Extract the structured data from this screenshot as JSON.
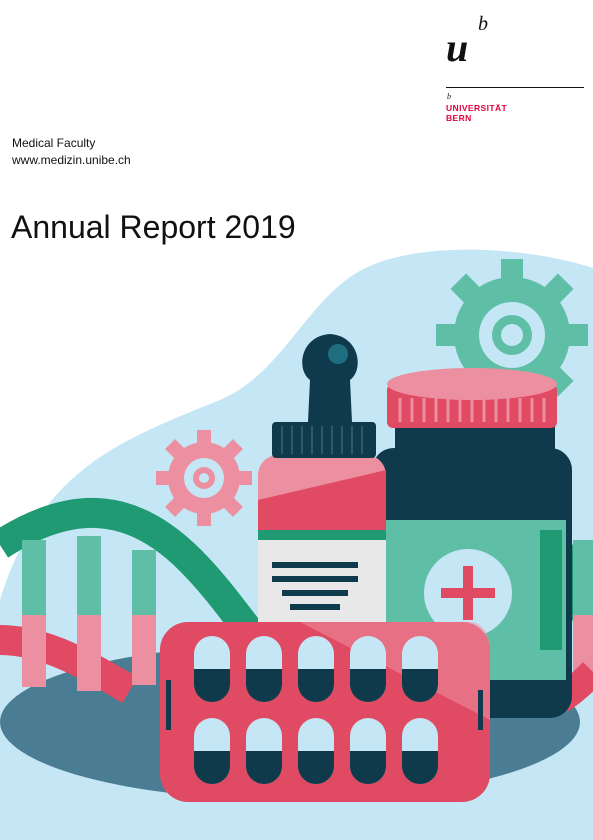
{
  "logo": {
    "mark_u": "u",
    "mark_b": "b",
    "small_b": "b",
    "line1": "UNIVERSITÄT",
    "line2": "BERN",
    "color": "#e2003b"
  },
  "faculty": {
    "name": "Medical Faculty",
    "url": "www.medizin.unibe.ch"
  },
  "title": "Annual Report 2019",
  "illustration": {
    "description_icons": [
      "dna-helix-icon",
      "gear-icon",
      "dropper-bottle-icon",
      "pill-jar-icon",
      "blister-pack-icon",
      "medical-cross-icon"
    ],
    "colors": {
      "background_blob": "#c5e6f5",
      "teal": "#5fbfa6",
      "green": "#1f9a73",
      "dark_navy": "#0e3a4c",
      "pink": "#ec8fa0",
      "red": "#e04a63",
      "shadow": "#4a7d93"
    }
  }
}
